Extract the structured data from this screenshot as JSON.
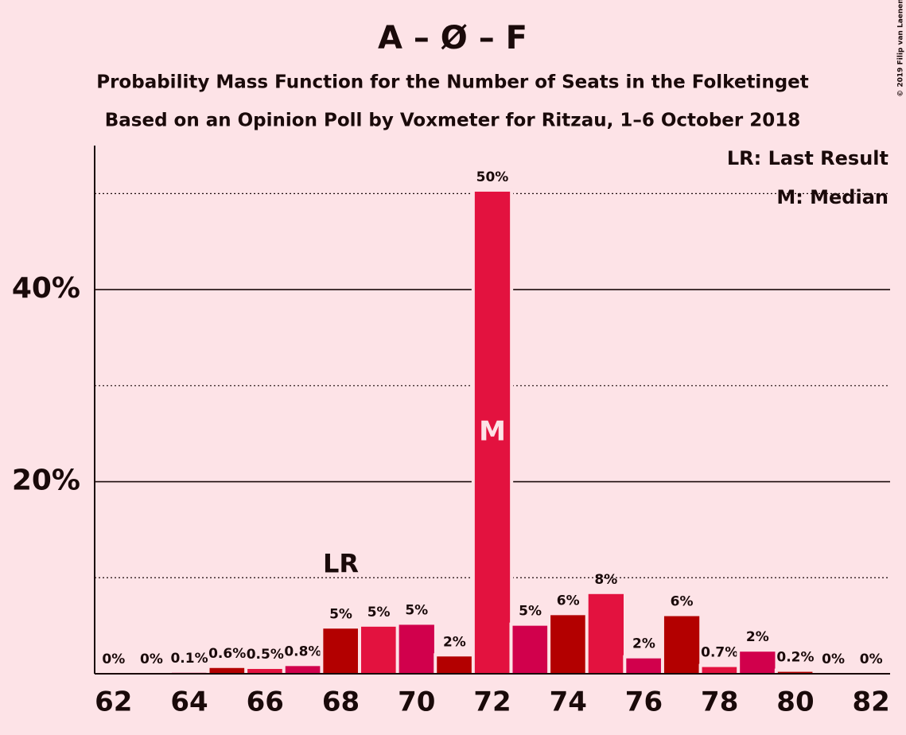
{
  "chart_data": {
    "type": "bar",
    "title": "A – Ø – F",
    "subtitle": "Probability Mass Function for the Number of Seats in the Folketinget",
    "subtitle2": "Based on an Opinion Poll by Voxmeter for Ritzau, 1–6 October 2018",
    "copyright": "© 2019 Filip van Laenen",
    "x": [
      62,
      63,
      64,
      65,
      66,
      67,
      68,
      69,
      70,
      71,
      72,
      73,
      74,
      75,
      76,
      77,
      78,
      79,
      80,
      81,
      82
    ],
    "values": [
      0,
      0,
      0.1,
      0.6,
      0.5,
      0.8,
      4.7,
      4.9,
      5.1,
      1.8,
      50.2,
      5.0,
      6.1,
      8.3,
      1.6,
      6.0,
      0.7,
      2.3,
      0.2,
      0,
      0
    ],
    "value_labels": [
      "0%",
      "0%",
      "0.1%",
      "0.6%",
      "0.5%",
      "0.8%",
      "5%",
      "5%",
      "5%",
      "2%",
      "50%",
      "5%",
      "6%",
      "8%",
      "2%",
      "6%",
      "0.7%",
      "2%",
      "0.2%",
      "0%",
      "0%"
    ],
    "colors": [
      "#b30000",
      "#e3123f",
      "#d1004c",
      "#b30000",
      "#e3123f",
      "#d1004c",
      "#b30000",
      "#e3123f",
      "#d1004c",
      "#b30000",
      "#e3123f",
      "#d1004c",
      "#b30000",
      "#e3123f",
      "#d1004c",
      "#b30000",
      "#e3123f",
      "#d1004c",
      "#b30000",
      "#e3123f",
      "#d1004c"
    ],
    "xlim": [
      61.5,
      82.5
    ],
    "xticks": [
      62,
      64,
      66,
      68,
      70,
      72,
      74,
      76,
      78,
      80,
      82
    ],
    "ylim": [
      0,
      55
    ],
    "yticks": [
      {
        "value": 20,
        "label": "20%"
      },
      {
        "value": 40,
        "label": "40%"
      }
    ],
    "minor_yticks": [
      10,
      30,
      50
    ],
    "annotations": {
      "last_result": {
        "x": 68,
        "label": "LR"
      },
      "median": {
        "x": 72,
        "label": "M"
      }
    },
    "legend": [
      "LR: Last Result",
      "M: Median"
    ]
  }
}
